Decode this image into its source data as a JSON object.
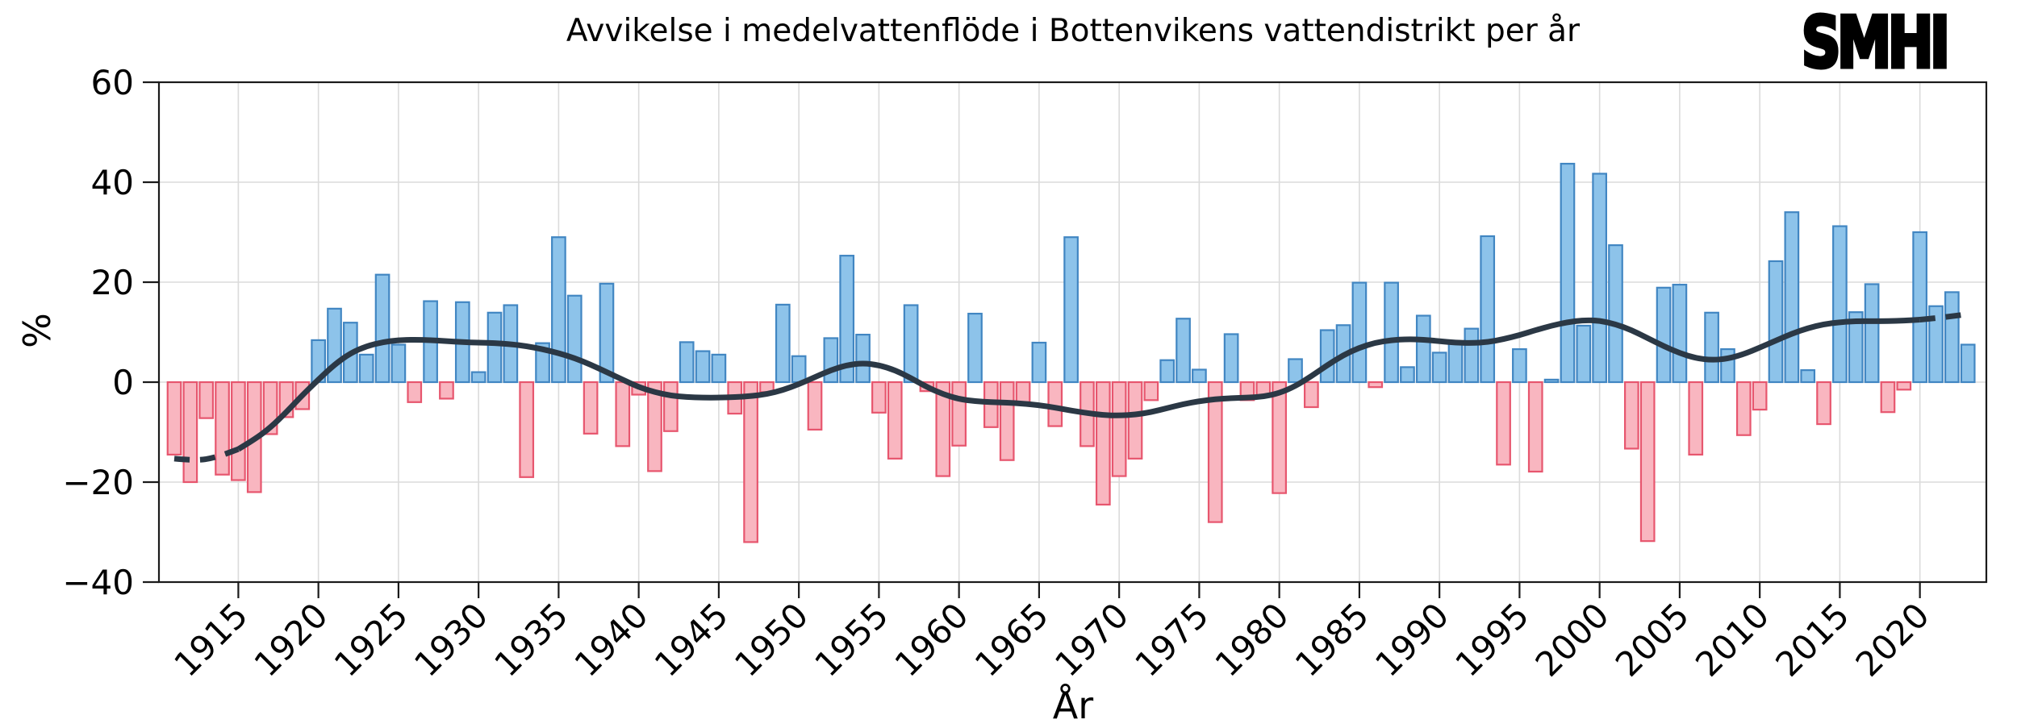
{
  "header": {
    "logo_text": "SMHI"
  },
  "chart_data": {
    "type": "bar",
    "title": "Avvikelse i medelvattenflöde i Bottenvikens vattendistrikt per år",
    "xlabel": "År",
    "ylabel": "%",
    "ylim": [
      -40,
      60
    ],
    "xlim": [
      1910.5,
      2024
    ],
    "grid": true,
    "legend_position": "none",
    "yticks": [
      60,
      40,
      20,
      0,
      -20,
      -40
    ],
    "ytick_labels": [
      "60",
      "40",
      "20",
      "0",
      "−20",
      "−40"
    ],
    "xticks": [
      1915,
      1920,
      1925,
      1930,
      1935,
      1940,
      1945,
      1950,
      1955,
      1960,
      1965,
      1970,
      1975,
      1980,
      1985,
      1990,
      1995,
      2000,
      2005,
      2010,
      2015,
      2020
    ],
    "xtick_labels": [
      "1915",
      "1920",
      "1925",
      "1930",
      "1935",
      "1940",
      "1945",
      "1950",
      "1955",
      "1960",
      "1965",
      "1970",
      "1975",
      "1980",
      "1985",
      "1990",
      "1995",
      "2000",
      "2005",
      "2010",
      "2015",
      "2020"
    ],
    "years": [
      1911,
      1912,
      1913,
      1914,
      1915,
      1916,
      1917,
      1918,
      1919,
      1920,
      1921,
      1922,
      1923,
      1924,
      1925,
      1926,
      1927,
      1928,
      1929,
      1930,
      1931,
      1932,
      1933,
      1934,
      1935,
      1936,
      1937,
      1938,
      1939,
      1940,
      1941,
      1942,
      1943,
      1944,
      1945,
      1946,
      1947,
      1948,
      1949,
      1950,
      1951,
      1952,
      1953,
      1954,
      1955,
      1956,
      1957,
      1958,
      1959,
      1960,
      1961,
      1962,
      1963,
      1964,
      1965,
      1966,
      1967,
      1968,
      1969,
      1970,
      1971,
      1972,
      1973,
      1974,
      1975,
      1976,
      1977,
      1978,
      1979,
      1980,
      1981,
      1982,
      1983,
      1984,
      1985,
      1986,
      1987,
      1988,
      1989,
      1990,
      1991,
      1992,
      1993,
      1994,
      1995,
      1996,
      1997,
      1998,
      1999,
      2000,
      2001,
      2002,
      2003,
      2004,
      2005,
      2006,
      2007,
      2008,
      2009,
      2010,
      2011,
      2012,
      2013,
      2014,
      2015,
      2016,
      2017,
      2018,
      2019,
      2020,
      2021,
      2022,
      2023
    ],
    "values": [
      -14.5,
      -20,
      -7.2,
      -18.5,
      -19.6,
      -22,
      -10.4,
      -7,
      -5.4,
      8.4,
      14.7,
      11.9,
      5.5,
      21.5,
      7.5,
      -4,
      16.2,
      -3.3,
      16,
      2,
      13.9,
      15.4,
      -19,
      7.8,
      29,
      17.3,
      -10.3,
      19.7,
      -12.8,
      -2.5,
      -17.8,
      -9.8,
      8,
      6.2,
      5.5,
      -6.3,
      -32,
      -2,
      15.5,
      5.2,
      -9.5,
      8.8,
      25.3,
      9.5,
      -6.1,
      -15.3,
      15.4,
      -1.8,
      -18.8,
      -12.7,
      13.7,
      -9,
      -15.6,
      -4,
      7.9,
      -8.8,
      29,
      -12.8,
      -24.5,
      -18.8,
      -15.3,
      -3.6,
      4.4,
      12.7,
      2.5,
      -28,
      9.6,
      -3.6,
      -2.7,
      -22.2,
      4.6,
      -5,
      10.4,
      11.4,
      19.9,
      -1,
      19.9,
      3,
      13.3,
      5.9,
      7.8,
      10.7,
      29.2,
      -16.5,
      6.6,
      -17.9,
      0.5,
      43.7,
      11.3,
      41.7,
      27.4,
      -13.3,
      -31.8,
      18.9,
      19.5,
      -14.5,
      13.9,
      6.6,
      -10.6,
      -5.5,
      24.2,
      34,
      2.4,
      -8.4,
      31.2,
      14,
      19.6,
      -6,
      -1.5,
      30,
      15.2,
      18,
      7.5
    ],
    "trend": {
      "description": "smoothed-trend-line, dashed before 1916 and after 2019",
      "dashed_until_year": 1915,
      "dashed_from_year": 2020,
      "values": [
        -15.3,
        -15.6,
        -15.5,
        -14.6,
        -13.4,
        -11.5,
        -9.1,
        -6.0,
        -2.6,
        0.5,
        3.5,
        5.8,
        7.2,
        8.0,
        8.4,
        8.5,
        8.4,
        8.2,
        8.0,
        7.9,
        7.8,
        7.6,
        7.2,
        6.6,
        5.8,
        4.8,
        3.5,
        2.0,
        0.5,
        -1.0,
        -2.0,
        -2.7,
        -3.0,
        -3.1,
        -3.1,
        -3.0,
        -2.8,
        -2.4,
        -1.6,
        -0.4,
        1.0,
        2.4,
        3.4,
        3.8,
        3.4,
        2.4,
        0.8,
        -1.0,
        -2.4,
        -3.4,
        -3.8,
        -4.0,
        -4.1,
        -4.3,
        -4.6,
        -5.1,
        -5.7,
        -6.2,
        -6.6,
        -6.7,
        -6.5,
        -6.0,
        -5.2,
        -4.4,
        -3.8,
        -3.4,
        -3.2,
        -3.1,
        -2.9,
        -2.2,
        -0.8,
        1.2,
        3.4,
        5.4,
        6.9,
        7.9,
        8.4,
        8.6,
        8.5,
        8.2,
        7.9,
        7.8,
        8.0,
        8.6,
        9.4,
        10.4,
        11.3,
        12.0,
        12.4,
        12.3,
        11.6,
        10.4,
        8.8,
        7.2,
        5.8,
        4.8,
        4.4,
        4.7,
        5.6,
        6.9,
        8.3,
        9.7,
        10.8,
        11.6,
        12.0,
        12.2,
        12.2,
        12.2,
        12.3,
        12.5,
        12.8,
        13.2,
        13.6
      ]
    },
    "colors": {
      "positive_bar_fill": "#8dc3ea",
      "positive_bar_edge": "#4186c2",
      "negative_bar_fill": "#f9b6c0",
      "negative_bar_edge": "#e7566e",
      "trend_line": "#2b3845",
      "grid": "#dbdbdb",
      "spine": "#1a1a1a",
      "text": "#000000"
    }
  }
}
